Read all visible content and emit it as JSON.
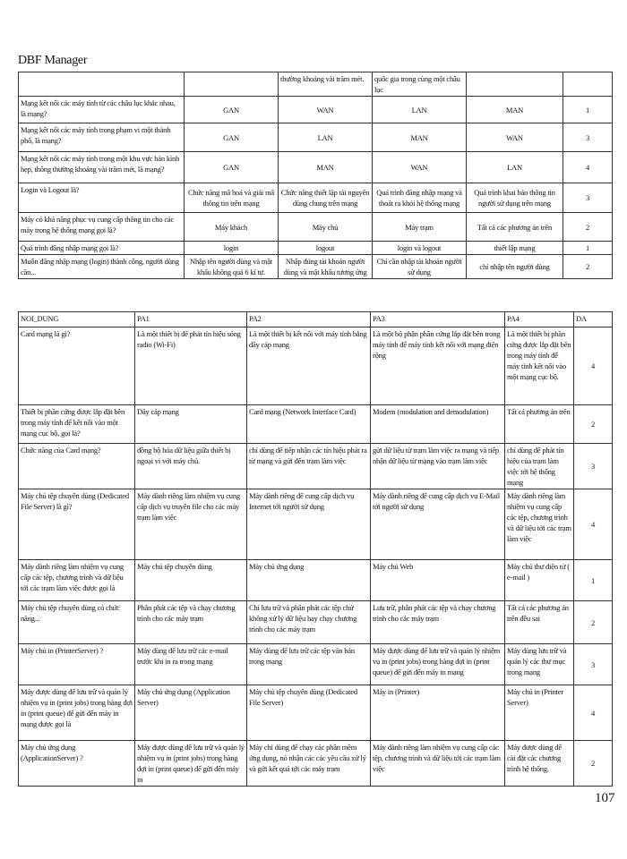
{
  "header": {
    "title": "DBF Manager"
  },
  "top_table": {
    "header": [
      "",
      "",
      "thường khoảng vài trăm mét.",
      "quốc gia trong cùng một châu lục",
      "",
      ""
    ],
    "rows": [
      [
        "Mạng kết nối các máy tính từ các châu lục khác nhau, là mạng?",
        "GAN",
        "WAN",
        "LAN",
        "MAN",
        "1"
      ],
      [
        "Mạng kết nối các máy tính trong phạm vi một thành phố, là mạng?",
        "GAN",
        "LAN",
        "MAN",
        "WAN",
        "3"
      ],
      [
        "Mạng kết nối các máy tính trong một khu vực bán kính hẹp, thông thường khoảng vài trăm mét, là mạng?",
        "GAN",
        "MAN",
        "WAN",
        "LAN",
        "4"
      ],
      [
        "Login và Logout là?",
        "Chức năng mã hoá và giải mã thông tin trên mạng",
        "Chức năng thiết lập tài nguyên dùng chung trên mạng",
        "Quá trình đăng nhập mạng và thoát ra khỏi hệ thống mạng",
        "Quá trình khai báo thông tin người sử dụng trên mạng",
        "3"
      ],
      [
        "Máy có khả năng phục vụ cung cấp thông tin cho các máy trong hệ thống mạng gọi là?",
        "Máy khách",
        "Máy chủ",
        "Máy trạm",
        "Tất cả các phương án trên",
        "2"
      ],
      [
        "Quá trình đăng nhập mạng gọi là?",
        "login",
        "logout",
        "login và logout",
        "thiết lập mạng",
        "1"
      ],
      [
        "Muốn đăng nhập mạng (login) thành công, người dùng cần...",
        "Nhập tên người dùng và mật khẩu không quá 6 kí tự.",
        "Nhập đúng tài khoản người dùng và mật khẩu tương ứng",
        "Chỉ cần nhập tài khoản người sử dụng",
        "chỉ nhập tên người dùng",
        "2"
      ]
    ]
  },
  "bottom_table": {
    "header": [
      "NOI_DUNG",
      "PA1",
      "PA2",
      "PA3",
      "PA4",
      "DA"
    ],
    "rows": [
      [
        "Card mạng là gì?",
        "Là một thiết bị để phát tín hiệu sóng radio (Wi-Fi)",
        "Là một thiết bị kết nối với máy tính bằng dây cáp mạng",
        "Là một bộ phận phần cứng lắp đặt bên trong máy tính để máy tính kết nối với mạng điện rộng",
        "Là một thiết bị phần cứng được lắp đặt bên trong máy tính để máy tính kết nối vào một mạng cục bộ.",
        "4"
      ],
      [
        "Thiết bị phần cứng được lắp đặt bên trong máy tính để kết nối vào một mạng cục bộ, gọi là?",
        "Dây cáp mạng",
        "Card mạng (Network Interface Card)",
        "Modem (modulation and demodulation)",
        "Tất cả phương án trên",
        "2"
      ],
      [
        "Chức năng của Card mạng?",
        "đồng bộ hóa dữ liệu giữa thiết bị ngoại vi với máy chủ.",
        "chỉ dùng để tiếp nhận các tín hiệu phát ra từ mạng và gửi đến trạm làm việc",
        "gửi dữ liệu từ trạm làm việc ra mạng và tiếp nhận dữ liệu từ mạng vào trạm làm việc",
        "chỉ dùng để phát tín hiệu của trạm làm việc tới hệ thống mạng",
        "3"
      ],
      [
        "Máy chủ tệp chuyên dùng (Dedicated File Server) là gì?",
        "Máy dành riêng làm nhiệm vụ cung cấp dịch vụ truyền file cho các máy trạm làm việc",
        "Máy dành riêng để cung cấp dịch vụ Internet tới người sử dụng",
        "Máy dành riêng để cung cấp dịch vụ E-Mail tới người sử dụng",
        "Máy dành riêng làm nhiệm vụ cung cấp các tệp, chương trình và dữ liệu tới các trạm làm việc",
        "4"
      ],
      [
        "Máy dành riêng làm nhiệm vụ cung cấp các tệp, chương trình và dữ liệu tới các trạm làm việc được gọi là",
        "Máy chủ tệp chuyên dùng",
        "Máy chủ ứng dụng",
        "Máy chủ Web",
        "Máy chủ thư điện tử ( e-mail )",
        "1"
      ],
      [
        "Máy chủ tệp chuyên dùng có chức năng...",
        "Phân phát các tệp và chạy chương trình cho các máy trạm",
        "Chỉ lưu trữ và phân phát các tệp chứ không xử lý dữ liệu hay chạy chương trình cho các máy trạm",
        "Lưu trữ, phân phát các tệp và chạy chương trình cho các máy trạm",
        "Tất cả các phương án trên đều sai",
        "2"
      ],
      [
        "Máy chủ in (PrinterServer) ?",
        "Máy dùng để lưu trữ các e-mail trước khi in ra trong mạng",
        "Máy dùng để lưu trữ các tệp văn bản trong mạng",
        "Máy được dùng để lưu trữ và quản lý nhiệm vụ in (print jobs) trong hàng đợi in (print queue) để gửi đến máy in mạng",
        "Máy dùng lưu trữ và quản lý các thư mục trong mạng",
        "3"
      ],
      [
        "Máy được dùng để lưu trữ và quản lý nhiệm vụ in (print jobs) trong hàng đợi in (print queue) để gửi đến máy in mạng được gọi là",
        "Máy chủ ứng dụng (Application Server)",
        "Máy chủ tệp chuyên dùng (Dedicated File Server)",
        "Máy in (Printer)",
        "Máy chủ in (Printer Server)",
        "4"
      ],
      [
        "Máy chủ ứng dụng (ApplicationServer) ?",
        "Máy được dùng để lưu trữ và quản lý nhiệm vụ in (print jobs) trong hàng đợi in (print queue) để gửi đến máy in",
        "Máy chỉ dùng để chạy các phần mềm ứng dụng, nó nhận các các yêu cầu xử lý và gửi kết quả tới các máy trạm",
        "Máy dành riêng làm nhiệm vụ cung cấp các tệp, chương trình và dữ liệu tới các trạm làm việc",
        "Máy được dùng để cài đặt các chương trình hệ thống.",
        "2"
      ]
    ]
  },
  "footer": {
    "page_number": "107"
  }
}
